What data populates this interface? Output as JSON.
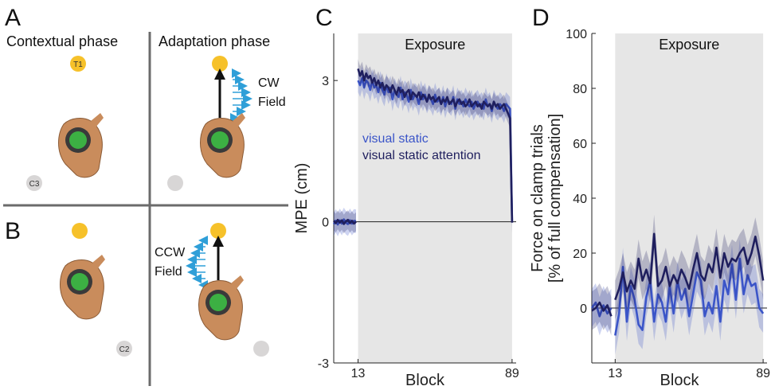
{
  "panels": {
    "A": "A",
    "B": "B",
    "C": "C",
    "D": "D"
  },
  "schematic": {
    "contextual_title": "Contextual phase",
    "adaptation_title": "Adaptation phase",
    "target_top_label": "T1",
    "cue_a_label": "C3",
    "cue_b_label": "C2",
    "cw_line1": "CW",
    "cw_line2": "Field",
    "ccw_line1": "CCW",
    "ccw_line2": "Field",
    "colors": {
      "target": "#f6c12a",
      "cue": "#d8d6d6",
      "handle": "#3cb043",
      "skin": "#c98c5c",
      "force": "#2f9fd8",
      "arrow": "#111111"
    }
  },
  "chart_data": [
    {
      "type": "line",
      "panel": "C",
      "title": "Exposure",
      "xlabel": "Block",
      "ylabel": "MPE (cm)",
      "xlim": [
        1,
        91
      ],
      "ylim": [
        -3,
        4.0
      ],
      "xticks": [
        13,
        89
      ],
      "yticks": [
        -3,
        0,
        3
      ],
      "shaded_region": {
        "label": "Exposure",
        "x": [
          13,
          89
        ]
      },
      "legend": [
        "visual static",
        "visual static attention"
      ],
      "series": [
        {
          "name": "visual static",
          "color": "#3b55c8",
          "x": [
            1,
            2,
            3,
            4,
            5,
            6,
            7,
            8,
            9,
            10,
            11,
            12,
            13,
            14,
            15,
            16,
            17,
            18,
            19,
            20,
            21,
            22,
            23,
            24,
            25,
            26,
            27,
            28,
            29,
            30,
            31,
            32,
            33,
            34,
            35,
            36,
            37,
            38,
            39,
            40,
            41,
            42,
            43,
            44,
            45,
            46,
            47,
            48,
            49,
            50,
            51,
            52,
            53,
            54,
            55,
            56,
            57,
            58,
            59,
            60,
            61,
            62,
            63,
            64,
            65,
            66,
            67,
            68,
            69,
            70,
            71,
            72,
            73,
            74,
            75,
            76,
            77,
            78,
            79,
            80,
            81,
            82,
            83,
            84,
            85,
            86,
            87,
            88,
            89,
            90
          ],
          "y": [
            -0.05,
            0.02,
            -0.06,
            0.03,
            -0.04,
            0.05,
            -0.02,
            -0.05,
            0.03,
            -0.04,
            0.02,
            0.01,
            3.0,
            2.9,
            3.05,
            2.85,
            3.0,
            2.95,
            2.8,
            3.0,
            2.85,
            2.9,
            2.75,
            2.95,
            2.8,
            2.7,
            2.9,
            2.75,
            2.85,
            2.6,
            2.8,
            2.7,
            2.65,
            2.85,
            2.6,
            2.75,
            2.7,
            2.55,
            2.8,
            2.6,
            2.7,
            2.65,
            2.5,
            2.75,
            2.6,
            2.7,
            2.55,
            2.65,
            2.6,
            2.5,
            2.7,
            2.55,
            2.6,
            2.5,
            2.65,
            2.45,
            2.6,
            2.55,
            2.5,
            2.65,
            2.4,
            2.6,
            2.5,
            2.55,
            2.45,
            2.6,
            2.5,
            2.45,
            2.55,
            2.4,
            2.5,
            2.55,
            2.45,
            2.5,
            2.4,
            2.6,
            2.45,
            2.5,
            2.35,
            2.55,
            2.45,
            2.4,
            2.5,
            2.45,
            2.35,
            2.5,
            2.45,
            2.4,
            0.0,
            -0.05
          ],
          "band": 0.25
        },
        {
          "name": "visual static attention",
          "color": "#1f1f5e",
          "x": [
            1,
            2,
            3,
            4,
            5,
            6,
            7,
            8,
            9,
            10,
            11,
            12,
            13,
            14,
            15,
            16,
            17,
            18,
            19,
            20,
            21,
            22,
            23,
            24,
            25,
            26,
            27,
            28,
            29,
            30,
            31,
            32,
            33,
            34,
            35,
            36,
            37,
            38,
            39,
            40,
            41,
            42,
            43,
            44,
            45,
            46,
            47,
            48,
            49,
            50,
            51,
            52,
            53,
            54,
            55,
            56,
            57,
            58,
            59,
            60,
            61,
            62,
            63,
            64,
            65,
            66,
            67,
            68,
            69,
            70,
            71,
            72,
            73,
            74,
            75,
            76,
            77,
            78,
            79,
            80,
            81,
            82,
            83,
            84,
            85,
            86,
            87,
            88,
            89,
            90
          ],
          "y": [
            0.02,
            -0.03,
            0.04,
            -0.02,
            0.03,
            -0.05,
            0.01,
            0.04,
            -0.03,
            0.02,
            -0.04,
            0.0,
            3.25,
            3.1,
            3.2,
            3.0,
            3.15,
            3.05,
            3.1,
            2.95,
            3.05,
            2.9,
            3.0,
            2.85,
            2.95,
            2.8,
            2.9,
            2.85,
            2.75,
            2.9,
            2.8,
            2.7,
            2.85,
            2.75,
            2.8,
            2.65,
            2.75,
            2.8,
            2.6,
            2.75,
            2.7,
            2.65,
            2.75,
            2.6,
            2.7,
            2.65,
            2.55,
            2.7,
            2.6,
            2.65,
            2.55,
            2.6,
            2.65,
            2.5,
            2.6,
            2.55,
            2.65,
            2.5,
            2.55,
            2.6,
            2.45,
            2.55,
            2.6,
            2.5,
            2.55,
            2.45,
            2.5,
            2.6,
            2.45,
            2.5,
            2.55,
            2.45,
            2.5,
            2.4,
            2.55,
            2.5,
            2.45,
            2.5,
            2.4,
            2.55,
            2.45,
            2.5,
            2.4,
            2.45,
            2.5,
            2.4,
            2.3,
            2.2,
            -0.02,
            0.03
          ],
          "band": 0.2
        }
      ]
    },
    {
      "type": "line",
      "panel": "D",
      "title": "Exposure",
      "xlabel": "Block",
      "ylabel_line1": "Force on clamp trials",
      "ylabel_line2": "[% of full compensation]",
      "xlim": [
        1,
        91
      ],
      "ylim": [
        -20,
        100
      ],
      "xticks": [
        13,
        89
      ],
      "yticks": [
        0,
        20,
        40,
        60,
        80,
        100
      ],
      "shaded_region": {
        "label": "Exposure",
        "x": [
          13,
          89
        ]
      },
      "series": [
        {
          "name": "visual static",
          "color": "#3b55c8",
          "x": [
            1,
            3,
            5,
            7,
            9,
            11,
            13,
            15,
            17,
            19,
            21,
            23,
            25,
            27,
            29,
            31,
            33,
            35,
            37,
            39,
            41,
            43,
            45,
            47,
            49,
            51,
            53,
            55,
            57,
            59,
            61,
            63,
            65,
            67,
            69,
            71,
            73,
            75,
            77,
            79,
            81,
            83,
            85,
            87,
            89,
            90
          ],
          "y": [
            0,
            2,
            -3,
            1,
            -2,
            0,
            -10,
            -2,
            15,
            -5,
            8,
            3,
            -6,
            -8,
            4,
            10,
            -5,
            5,
            2,
            -5,
            8,
            -2,
            10,
            3,
            7,
            -3,
            5,
            13,
            10,
            -3,
            2,
            -2,
            8,
            -5,
            10,
            5,
            16,
            3,
            18,
            5,
            12,
            8,
            9,
            0,
            -2,
            -3
          ],
          "band": 7
        },
        {
          "name": "visual static attention",
          "color": "#1f1f5e",
          "x": [
            1,
            3,
            5,
            7,
            9,
            11,
            13,
            15,
            17,
            19,
            21,
            23,
            25,
            27,
            29,
            31,
            33,
            35,
            37,
            39,
            41,
            43,
            45,
            47,
            49,
            51,
            53,
            55,
            57,
            59,
            61,
            63,
            65,
            67,
            69,
            71,
            73,
            75,
            77,
            79,
            81,
            83,
            85,
            87,
            89,
            90
          ],
          "y": [
            -1,
            0,
            2,
            -1,
            1,
            -3,
            3,
            7,
            13,
            6,
            10,
            7,
            18,
            10,
            14,
            9,
            27,
            8,
            10,
            15,
            8,
            12,
            9,
            14,
            11,
            7,
            14,
            20,
            12,
            10,
            16,
            13,
            22,
            11,
            20,
            15,
            18,
            17,
            20,
            22,
            16,
            20,
            26,
            19,
            10,
            12
          ],
          "band": 7
        }
      ]
    }
  ]
}
